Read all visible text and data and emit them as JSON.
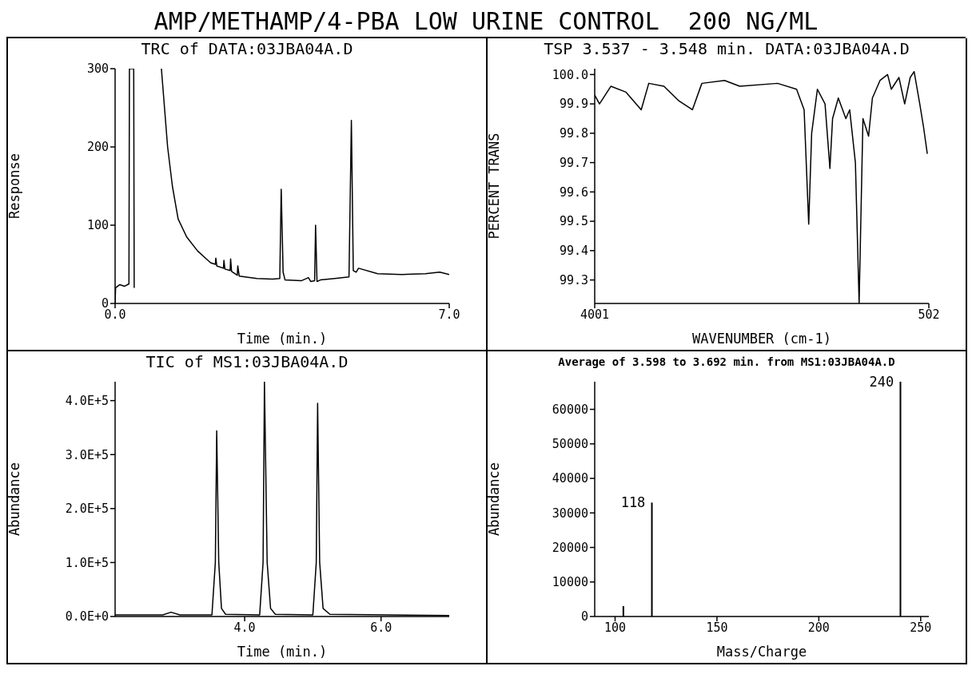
{
  "chart_data": [
    {
      "type": "other",
      "title": "AMP/METHAMP/4-PBA LOW URINE CONTROL  200 NG/ML"
    },
    {
      "type": "line",
      "title": "TRC of DATA:03JBA04A.D",
      "xlabel": "Time  (min.)",
      "ylabel": "Response",
      "xlim": [
        0,
        7
      ],
      "xticks": [
        {
          "value": 0,
          "label": "0.0"
        },
        {
          "value": 7,
          "label": "7.0"
        }
      ],
      "ylim": [
        0,
        300
      ],
      "yticks": [
        0,
        100,
        200,
        300
      ],
      "grid": false,
      "legend": false,
      "series": [
        {
          "color": "#000000",
          "x": [
            0,
            0.01,
            0.1,
            0.2,
            0.29,
            0.3,
            0.39,
            0.4,
            0.6,
            0.97,
            1.1,
            1.2,
            1.32,
            1.5,
            1.73,
            2.0,
            2.1,
            2.11,
            2.13,
            2.27,
            2.28,
            2.3,
            2.41,
            2.42,
            2.44,
            2.56,
            2.57,
            2.6,
            2.97,
            3.3,
            3.45,
            3.48,
            3.52,
            3.56,
            3.9,
            4.05,
            4.1,
            4.18,
            4.2,
            4.23,
            4.3,
            4.6,
            4.9,
            4.95,
            4.99,
            5.05,
            5.1,
            5.5,
            6.0,
            6.5,
            6.8,
            7.0
          ],
          "values": [
            0,
            20,
            24,
            22,
            25,
            300,
            300,
            20,
            null,
            300,
            200,
            150,
            108,
            85,
            67,
            52,
            50,
            58,
            48,
            45,
            55,
            44,
            42,
            57,
            41,
            36,
            48,
            35,
            32,
            31,
            32,
            146,
            40,
            30,
            29,
            33,
            28,
            29,
            100,
            28,
            30,
            32,
            34,
            234,
            42,
            40,
            45,
            38,
            37,
            38,
            40,
            37
          ]
        }
      ]
    },
    {
      "type": "line",
      "title": "TSP 3.537 - 3.548 min. DATA:03JBA04A.D",
      "xlabel": "WAVENUMBER (cm-1)",
      "ylabel": "PERCENT TRANS",
      "xlim": [
        4001,
        502
      ],
      "xticks": [
        4001,
        502
      ],
      "ylim": [
        99.22,
        100.02
      ],
      "yticks": [
        99.3,
        99.4,
        99.5,
        99.6,
        99.7,
        99.8,
        99.9,
        {
          "value": 100,
          "label": "100.0"
        }
      ],
      "grid": false,
      "legend": false,
      "series": [
        {
          "color": "#000000",
          "x": [
            4001,
            3951,
            3832,
            3673,
            3514,
            3435,
            3276,
            3118,
            2978,
            2879,
            2641,
            2482,
            2086,
            1887,
            1808,
            1760,
            1729,
            1669,
            1589,
            1538,
            1510,
            1450,
            1371,
            1331,
            1271,
            1232,
            1192,
            1133,
            1093,
            1013,
            934,
            895,
            815,
            755,
            697,
            656,
            597,
            557,
            518
          ],
          "values": [
            99.93,
            99.9,
            99.96,
            99.94,
            99.88,
            99.97,
            99.96,
            99.91,
            99.88,
            99.97,
            99.98,
            99.96,
            99.97,
            99.95,
            99.88,
            99.49,
            99.8,
            99.95,
            99.9,
            99.68,
            99.85,
            99.92,
            99.85,
            99.88,
            99.7,
            99.22,
            99.85,
            99.79,
            99.92,
            99.98,
            100.0,
            99.95,
            99.99,
            99.9,
            99.99,
            100.01,
            99.9,
            99.82,
            99.73
          ]
        }
      ]
    },
    {
      "type": "line",
      "title": "TIC of MS1:03JBA04A.D",
      "xlabel": "Time (min.)",
      "ylabel": "Abundance",
      "xlim": [
        2.1,
        7.0
      ],
      "xticks": [
        {
          "value": 4,
          "label": "4.0"
        },
        {
          "value": 6,
          "label": "6.0"
        }
      ],
      "ylim": [
        0,
        435000
      ],
      "yticks": [
        {
          "value": 0,
          "label": "0.0E+0"
        },
        {
          "value": 100000,
          "label": "1.0E+5"
        },
        {
          "value": 200000,
          "label": "2.0E+5"
        },
        {
          "value": 300000,
          "label": "3.0E+5"
        },
        {
          "value": 400000,
          "label": "4.0E+5"
        }
      ],
      "grid": false,
      "legend": false,
      "series": [
        {
          "color": "#000000",
          "x": [
            2.1,
            2.8,
            2.92,
            3.05,
            3.52,
            3.57,
            3.59,
            3.62,
            3.66,
            3.72,
            4.22,
            4.27,
            4.29,
            4.33,
            4.38,
            4.45,
            5.0,
            5.05,
            5.07,
            5.1,
            5.15,
            5.25,
            7.0
          ],
          "values": [
            3000,
            3000,
            8000,
            3000,
            3000,
            100000,
            344000,
            100000,
            15000,
            4000,
            3000,
            100000,
            435000,
            100000,
            15000,
            4000,
            3000,
            100000,
            395000,
            100000,
            15000,
            4000,
            2000
          ]
        }
      ]
    },
    {
      "type": "bar",
      "title": "Average of 3.598 to 3.692 min. from MS1:03JBA04A.D",
      "xlabel": "Mass/Charge",
      "ylabel": "Abundance",
      "xlim": [
        90,
        254
      ],
      "xticks": [
        100,
        150,
        200,
        250
      ],
      "ylim": [
        0,
        68000
      ],
      "yticks": [
        0,
        10000,
        20000,
        30000,
        40000,
        50000,
        60000
      ],
      "grid": false,
      "legend": false,
      "series": [
        {
          "color": "#000000",
          "x": [
            104,
            118,
            240
          ],
          "values": [
            3000,
            33000,
            68000
          ]
        }
      ],
      "annotations": [
        {
          "text": "118",
          "x": 118,
          "y": 33000
        },
        {
          "text": "240",
          "x": 240,
          "y": 68000
        }
      ]
    }
  ]
}
